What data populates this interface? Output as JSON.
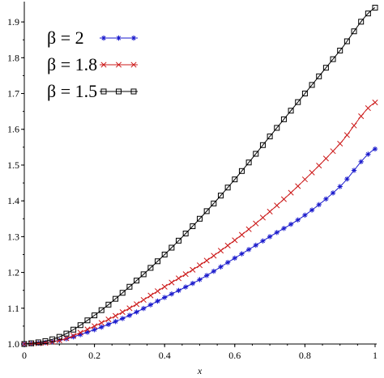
{
  "chart_data": {
    "type": "line",
    "xlabel": "x",
    "ylabel": "",
    "xlim": [
      0,
      1
    ],
    "ylim": [
      1.0,
      1.95
    ],
    "xticks": [
      "0",
      "0.2",
      "0.4",
      "0.6",
      "0.8",
      "1"
    ],
    "yticks": [
      "1.0",
      "1.1",
      "1.2",
      "1.3",
      "1.4",
      "1.5",
      "1.6",
      "1.7",
      "1.8",
      "1.9"
    ],
    "xtick_values": [
      0,
      0.2,
      0.4,
      0.6,
      0.8,
      1
    ],
    "ytick_values": [
      1.0,
      1.1,
      1.2,
      1.3,
      1.4,
      1.5,
      1.6,
      1.7,
      1.8,
      1.9
    ],
    "grid": false,
    "legend_position": "top-left",
    "x": [
      0,
      0.1,
      0.2,
      0.3,
      0.4,
      0.5,
      0.6,
      0.7,
      0.8,
      0.9,
      1.0
    ],
    "series": [
      {
        "name": "β = 2",
        "color": "#1a1acc",
        "marker": "asterisk",
        "values": [
          1.0,
          1.01,
          1.04,
          1.08,
          1.13,
          1.18,
          1.24,
          1.3,
          1.36,
          1.44,
          1.545
        ]
      },
      {
        "name": "β = 1.8",
        "color": "#cc1a1a",
        "marker": "cross",
        "values": [
          1.0,
          1.01,
          1.05,
          1.1,
          1.16,
          1.22,
          1.29,
          1.37,
          1.46,
          1.56,
          1.675
        ]
      },
      {
        "name": "β = 1.5",
        "color": "#000000",
        "marker": "square",
        "values": [
          1.0,
          1.02,
          1.08,
          1.16,
          1.25,
          1.35,
          1.46,
          1.58,
          1.7,
          1.82,
          1.94
        ]
      }
    ]
  }
}
